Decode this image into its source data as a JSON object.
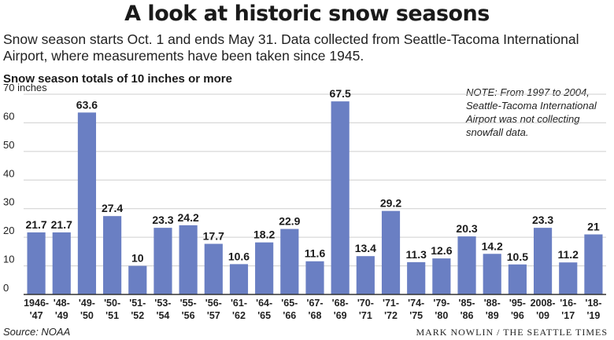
{
  "header": {
    "title": "A look at historic snow seasons",
    "subtitle": "Snow season starts Oct. 1 and ends May 31. Data collected from Seattle-Tacoma International Airport, where measurements have been taken since 1945."
  },
  "note": "NOTE: From 1997 to 2004, Seattle-Tacoma International Airport was not collecting snowfall data.",
  "footer": {
    "source": "Source: NOAA",
    "credit": "Mark Nowlin / The Seattle Times"
  },
  "colors": {
    "bar": "#6a7fc3",
    "grid": "#cfcfcf",
    "axis": "#333333"
  },
  "chart_data": {
    "type": "bar",
    "title": "Snow season totals of 10 inches or more",
    "ylabel": "",
    "y_unit_label": "70 inches",
    "ylim": [
      0,
      70
    ],
    "yticks": [
      0,
      10,
      20,
      30,
      40,
      50,
      60,
      70
    ],
    "grid": true,
    "categories": [
      [
        "1946-",
        "'47"
      ],
      [
        "'48-",
        "'49"
      ],
      [
        "'49-",
        "'50"
      ],
      [
        "'50-",
        "'51"
      ],
      [
        "'51-",
        "'52"
      ],
      [
        "'53-",
        "'54"
      ],
      [
        "'55-",
        "'56"
      ],
      [
        "'56-",
        "'57"
      ],
      [
        "'61-",
        "'62"
      ],
      [
        "'64-",
        "'65"
      ],
      [
        "'65-",
        "'66"
      ],
      [
        "'67-",
        "'68"
      ],
      [
        "'68-",
        "'69"
      ],
      [
        "'70-",
        "'71"
      ],
      [
        "'71-",
        "'72"
      ],
      [
        "'74-",
        "'75"
      ],
      [
        "'79-",
        "'80"
      ],
      [
        "'85-",
        "'86"
      ],
      [
        "'88-",
        "'89"
      ],
      [
        "'95-",
        "'96"
      ],
      [
        "2008-",
        "'09"
      ],
      [
        "'16-",
        "'17"
      ],
      [
        "'18-",
        "'19"
      ]
    ],
    "values": [
      21.7,
      21.7,
      63.6,
      27.4,
      10,
      23.3,
      24.2,
      17.7,
      10.6,
      18.2,
      22.9,
      11.6,
      67.5,
      13.4,
      29.2,
      11.3,
      12.6,
      20.3,
      14.2,
      10.5,
      23.3,
      11.2,
      21
    ],
    "value_labels": [
      "21.7",
      "21.7",
      "63.6",
      "27.4",
      "10",
      "23.3",
      "24.2",
      "17.7",
      "10.6",
      "18.2",
      "22.9",
      "11.6",
      "67.5",
      "13.4",
      "29.2",
      "11.3",
      "12.6",
      "20.3",
      "14.2",
      "10.5",
      "23.3",
      "11.2",
      "21"
    ]
  }
}
